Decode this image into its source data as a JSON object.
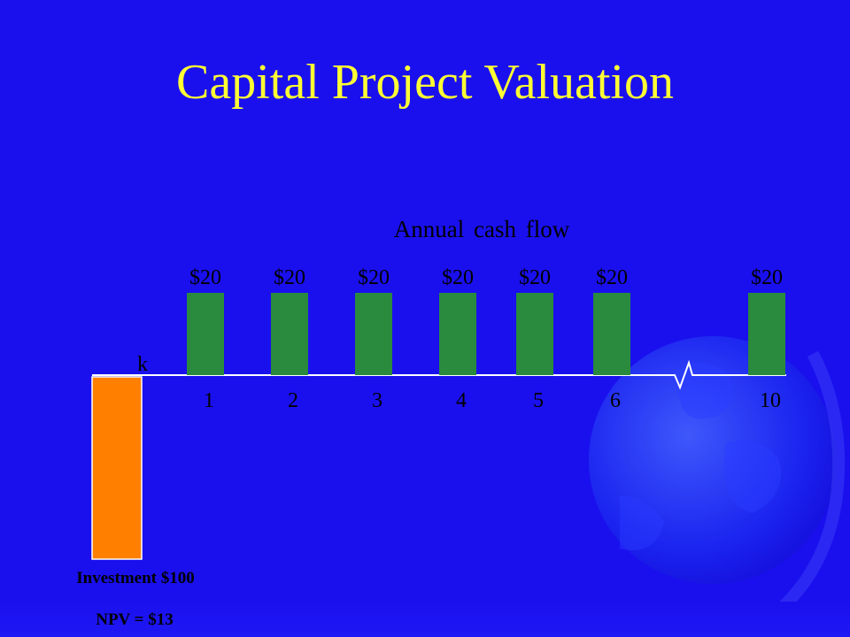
{
  "slide": {
    "title": "Capital Project Valuation"
  },
  "colors": {
    "background": "#1a10ee",
    "title": "#ffff33",
    "cash_flow_bar": "#2a8a3e",
    "investment_bar": "#ff8000",
    "text": "#ffffff",
    "label_text": "#000000",
    "axis": "#ffffff"
  },
  "chart_data": {
    "type": "bar",
    "title": "Annual cash flow",
    "categories": [
      "1",
      "2",
      "3",
      "4",
      "5",
      "6",
      "10"
    ],
    "series": [
      {
        "values": [
          20,
          20,
          20,
          20,
          20,
          20,
          20
        ],
        "value_labels": [
          "$20",
          "$20",
          "$20",
          "$20",
          "$20",
          "$20",
          "$20"
        ]
      }
    ],
    "investment": {
      "value": -100,
      "label": "Investment $100"
    },
    "rate_label": "k",
    "npv_label": "NPV = $13",
    "axis_break": "between 6 and 10",
    "ylim": [
      -100,
      20
    ],
    "grid": false,
    "legend": "none"
  }
}
